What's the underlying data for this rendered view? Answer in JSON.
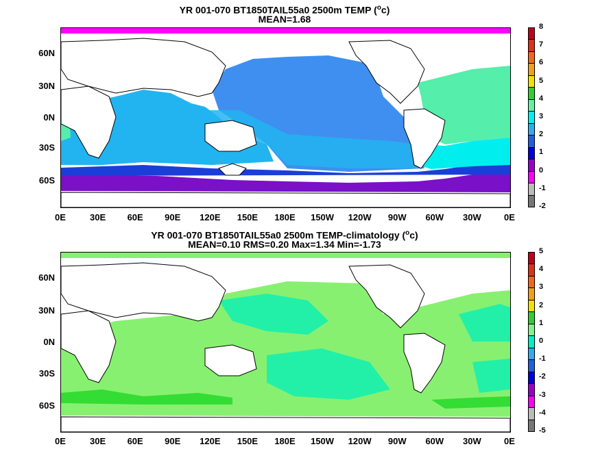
{
  "panels": [
    {
      "title_line1": "YR 001-070 BT1850TAIL55a0 2500m TEMP (",
      "title_unit": "o",
      "title_line1_end": "c)",
      "title_line2": "MEAN=1.68",
      "colorbar": {
        "labels": [
          "8",
          "7",
          "6",
          "5",
          "4",
          "3",
          "2",
          "1",
          "0",
          "-1",
          "-2"
        ],
        "colors": [
          "#c0001a",
          "#e03018",
          "#f06818",
          "#f0a020",
          "#f4e000",
          "#33cc33",
          "#66f0a0",
          "#00f0f0",
          "#33aaf0",
          "#1f5fe0",
          "#0000dd",
          "#9900cc",
          "#ff00ff",
          "#bbbbbb",
          "#777777"
        ]
      }
    },
    {
      "title_line1": "YR 001-070 BT1850TAIL55a0 2500m TEMP-climatology (",
      "title_unit": "o",
      "title_line1_end": "c)",
      "title_line2": "MEAN=0.10   RMS=0.20   Max=1.34   Min=-1.73",
      "colorbar": {
        "labels": [
          "5",
          "4",
          "3",
          "2",
          "1",
          "0",
          "-1",
          "-2",
          "-3",
          "-4",
          "-5"
        ],
        "colors": [
          "#c0001a",
          "#e03018",
          "#f06818",
          "#f0a020",
          "#f4e000",
          "#33cc33",
          "#88f088",
          "#00f0c0",
          "#33aaf0",
          "#1f5fe0",
          "#0000dd",
          "#9900cc",
          "#ff00ff",
          "#bbbbbb",
          "#777777"
        ]
      }
    }
  ],
  "lat_labels": [
    "60N",
    "30N",
    "0N",
    "30S",
    "60S"
  ],
  "lon_labels": [
    "0E",
    "30E",
    "60E",
    "90E",
    "120E",
    "150E",
    "180E",
    "150W",
    "120W",
    "90W",
    "60W",
    "30W",
    "0E"
  ],
  "colors": {
    "land": "#ffffff",
    "p1_pacific": "#3f8ff0",
    "p1_indian": "#22b4f0",
    "p1_atlantic": "#55eeaa",
    "p1_south": "#00eeee",
    "p1_southern": "#1a3fd8",
    "p1_antarctic": "#7a10c8",
    "p1_arctic": "#ff00ff",
    "p2_main": "#88f070",
    "p2_patch": "#22f0a8",
    "p2_green": "#33dd33"
  }
}
